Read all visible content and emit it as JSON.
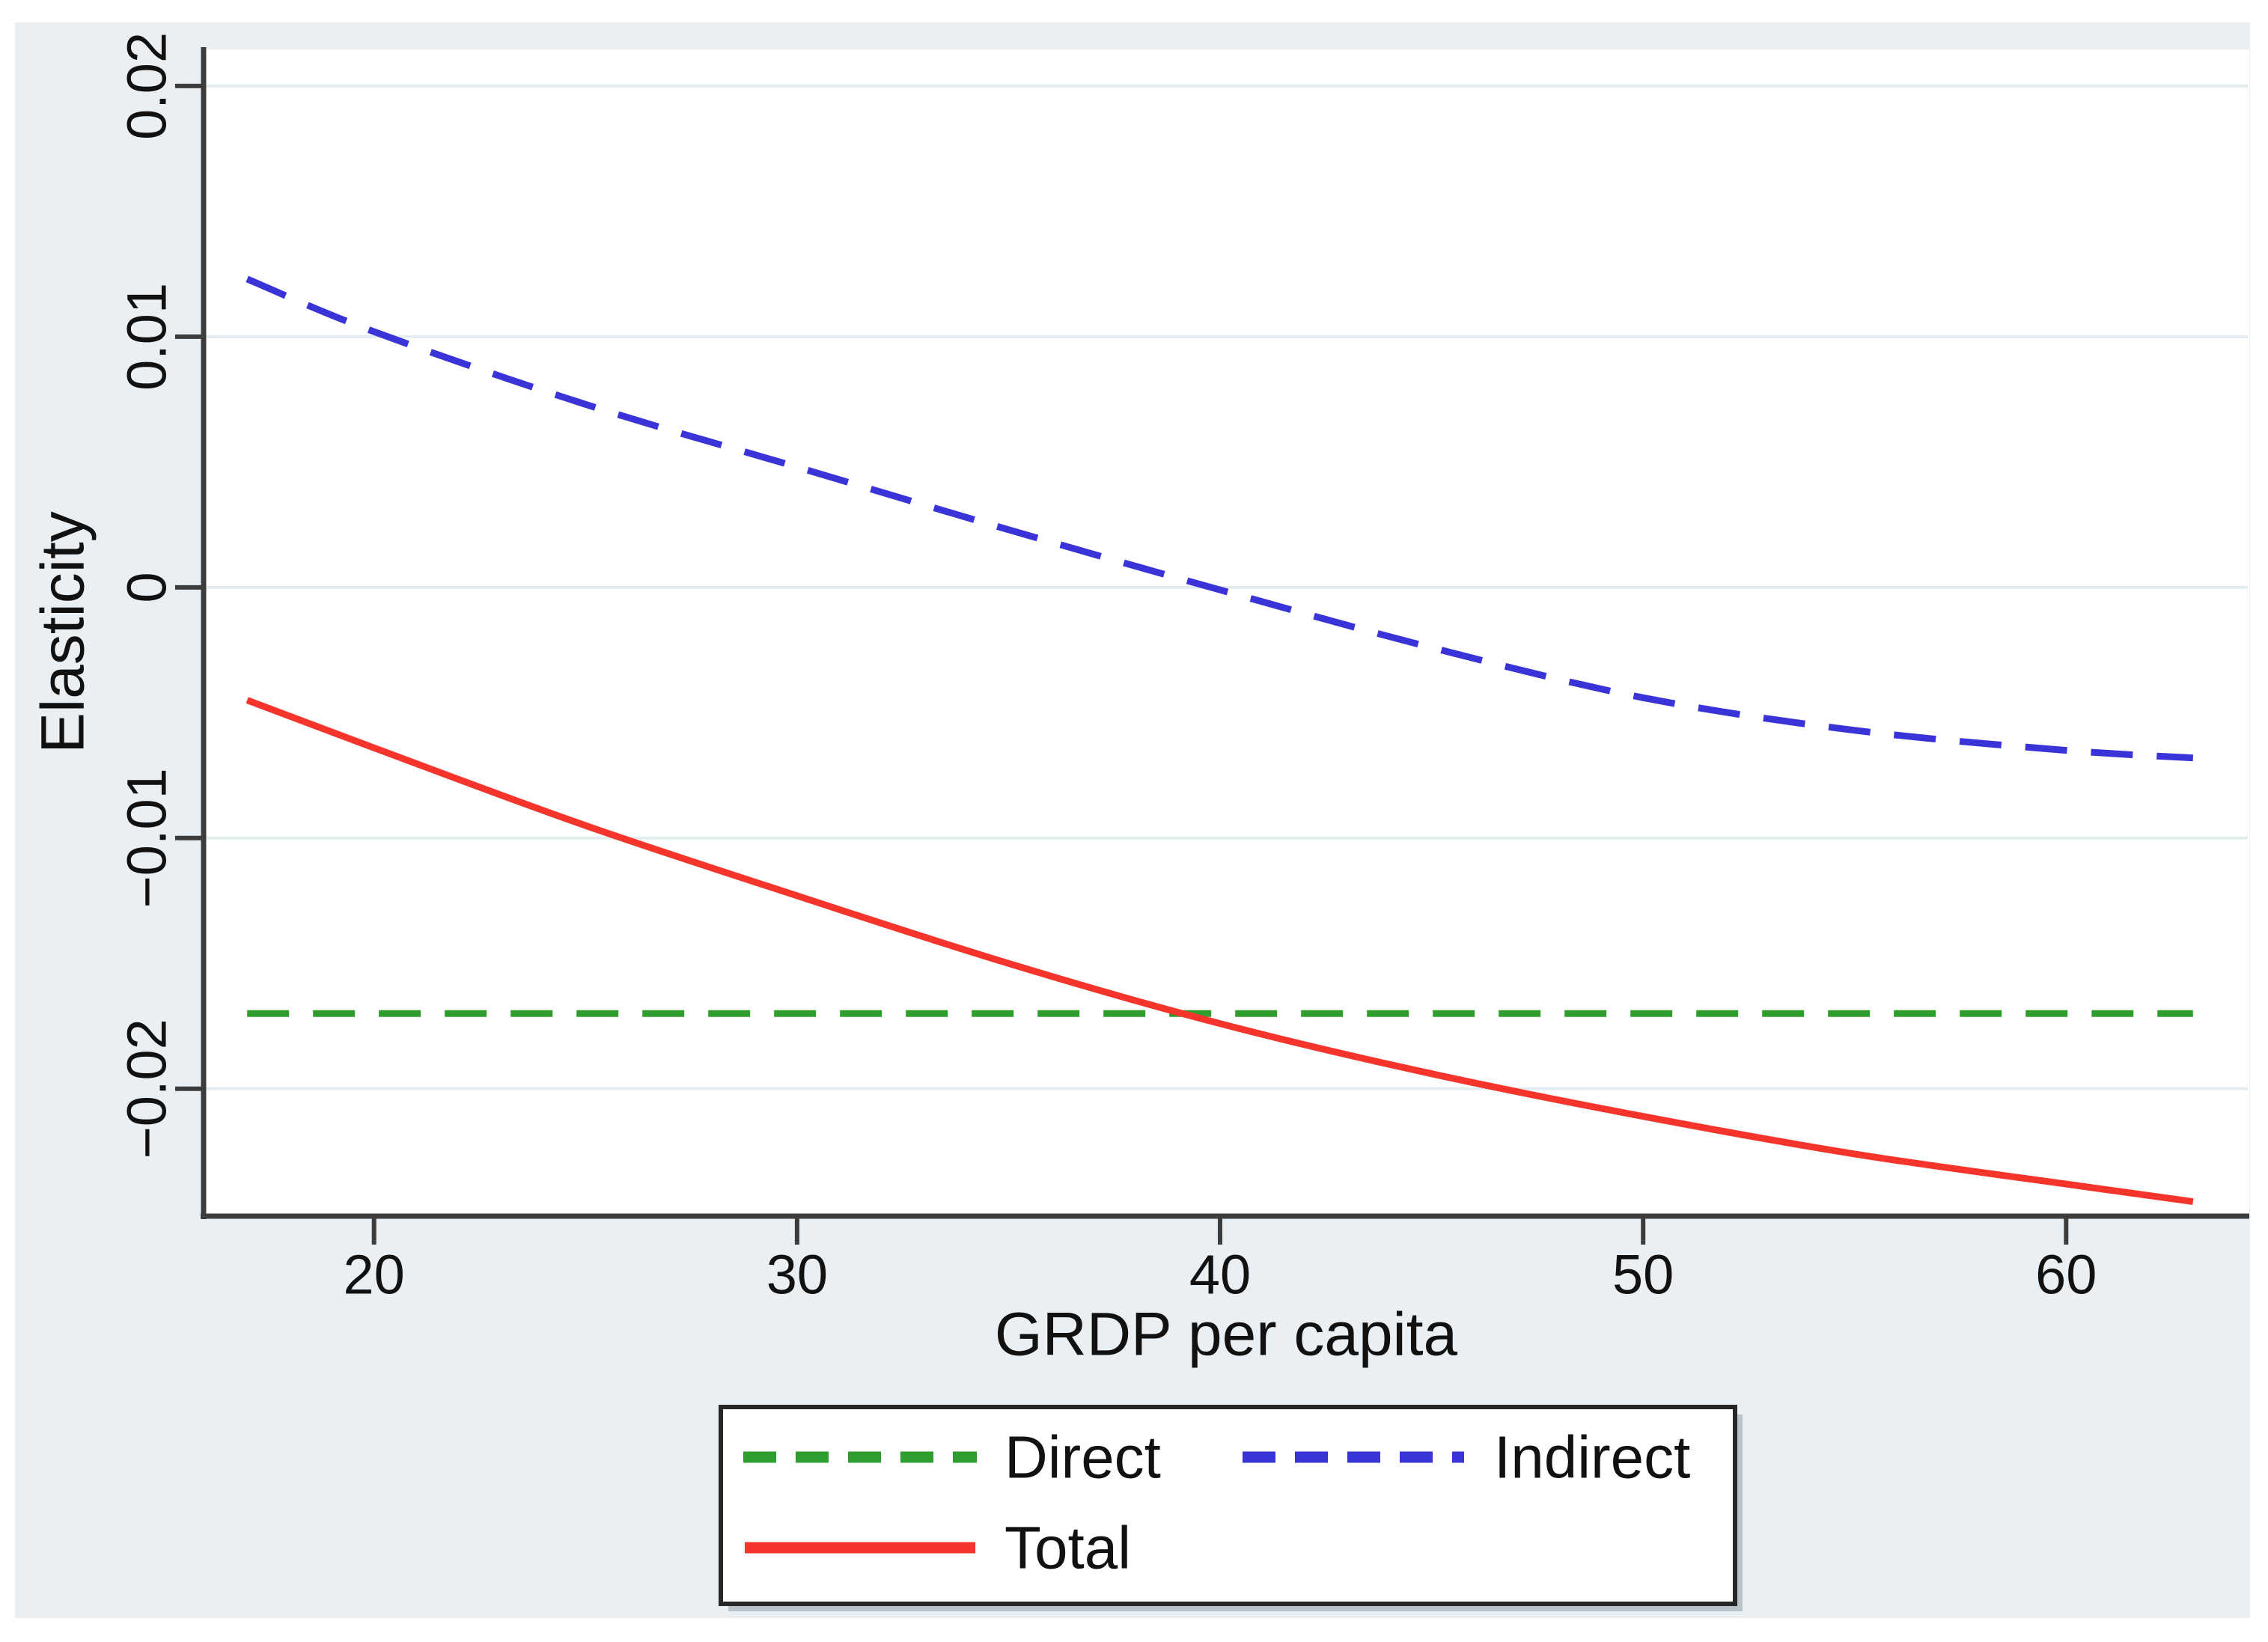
{
  "figure": {
    "background": "#e9eff2",
    "plot_background": "#ffffff",
    "gridline_color": "#e3edf0",
    "axis_color": "#3c3c3c",
    "text_color": "#111111",
    "legend_border_color": "#262626",
    "legend_shadow_color": "#b9c4ca"
  },
  "chart_data": {
    "type": "line",
    "title": "",
    "xlabel": "GRDP per capita",
    "ylabel": "Elasticity",
    "grid": true,
    "legend_position": "bottom",
    "xlim": [
      15.97,
      64.33
    ],
    "ylim": [
      -0.02508,
      0.02146
    ],
    "x_ticks": [
      20,
      30,
      40,
      50,
      60
    ],
    "x_tick_labels": [
      "20",
      "30",
      "40",
      "50",
      "60"
    ],
    "y_ticks": [
      0.02,
      0.01,
      0,
      -0.01,
      -0.02
    ],
    "y_tick_labels": [
      "0.02",
      "0.01",
      "0",
      "−0.01",
      "−0.02"
    ],
    "x": [
      17,
      20,
      25,
      30,
      35,
      40,
      45,
      50,
      55,
      60,
      63
    ],
    "series": [
      {
        "name": "Direct",
        "color": "#2f9e2f",
        "dash": "dashed",
        "values": [
          -0.017,
          -0.017,
          -0.017,
          -0.017,
          -0.017,
          -0.017,
          -0.017,
          -0.017,
          -0.017,
          -0.017,
          -0.017
        ]
      },
      {
        "name": "Indirect",
        "color": "#3a34d8",
        "dash": "dashed",
        "values": [
          0.0123,
          0.0102,
          0.0073,
          0.0048,
          0.0023,
          -0.0001,
          -0.0024,
          -0.0044,
          -0.0057,
          -0.0065,
          -0.0068
        ]
      },
      {
        "name": "Total",
        "color": "#f5352c",
        "dash": "solid",
        "values": [
          -0.0045,
          -0.0064,
          -0.0095,
          -0.0123,
          -0.015,
          -0.0174,
          -0.0194,
          -0.0211,
          -0.0226,
          -0.0238,
          -0.0245
        ]
      }
    ]
  }
}
